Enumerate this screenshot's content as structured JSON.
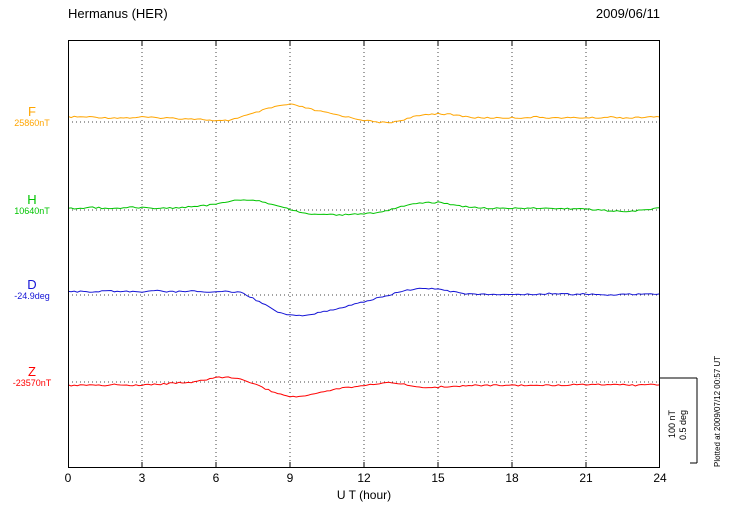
{
  "header": {
    "station": "Hermanus (HER)",
    "date": "2009/06/11"
  },
  "footer": {
    "plotted_at": "Plotted at 2009/07/12 00:57 UT"
  },
  "chart_data": {
    "type": "line",
    "title": "Hermanus (HER) magnetogram 2009/06/11",
    "xlabel": "U T (hour)",
    "x_range": [
      0,
      24
    ],
    "x_ticks": [
      0,
      3,
      6,
      9,
      12,
      15,
      18,
      21,
      24
    ],
    "x_hours_step": 0.5,
    "grid": "dotted vertical gridlines every 3 hours, dotted horizontal baseline per trace",
    "values_are": "offset from baseline value, sampled every 0.5 hour",
    "scale_bar": {
      "nT": 100,
      "deg": 0.5,
      "label_nT": "100 nT",
      "label_deg": "0.5 deg"
    },
    "series": [
      {
        "name": "F",
        "baseline_label": "25860nT",
        "baseline_value": 25860,
        "unit": "nT",
        "color": "#ffa500",
        "values": [
          6,
          6,
          6,
          5,
          5,
          5,
          6,
          5,
          5,
          4,
          4,
          3,
          1,
          2,
          6,
          10,
          15,
          19,
          21,
          18,
          14,
          11,
          8,
          5,
          2,
          0,
          -1,
          2,
          6,
          9,
          10,
          9,
          7,
          5,
          5,
          5,
          5,
          5,
          6,
          5,
          5,
          5,
          5,
          5,
          6,
          5,
          5,
          6,
          6
        ]
      },
      {
        "name": "H",
        "baseline_label": "10640nT",
        "baseline_value": 10640,
        "unit": "nT",
        "color": "#00c400",
        "values": [
          2,
          2,
          3,
          2,
          2,
          3,
          3,
          2,
          2,
          3,
          4,
          5,
          7,
          10,
          12,
          12,
          9,
          5,
          1,
          -3,
          -5,
          -5,
          -6,
          -5,
          -5,
          -3,
          0,
          4,
          8,
          9,
          9,
          7,
          4,
          3,
          2,
          2,
          2,
          2,
          2,
          2,
          2,
          1,
          1,
          0,
          -1,
          -2,
          -1,
          1,
          2
        ]
      },
      {
        "name": "D",
        "baseline_label": "-24.9deg",
        "baseline_value": -24.9,
        "unit": "deg",
        "color": "#1515d6",
        "values": [
          0.02,
          0.02,
          0.02,
          0.025,
          0.02,
          0.02,
          0.02,
          0.025,
          0.02,
          0.02,
          0.025,
          0.02,
          0.02,
          0.02,
          0.015,
          -0.02,
          -0.06,
          -0.1,
          -0.12,
          -0.125,
          -0.11,
          -0.095,
          -0.08,
          -0.06,
          -0.04,
          -0.02,
          0,
          0.02,
          0.035,
          0.04,
          0.035,
          0.02,
          0.01,
          0.005,
          0.005,
          0.005,
          0.005,
          0.005,
          0.005,
          0.01,
          0.005,
          0.005,
          0.005,
          0.005,
          0,
          0.005,
          0.005,
          0.005,
          0.005
        ]
      },
      {
        "name": "Z",
        "baseline_label": "-23570nT",
        "baseline_value": -23570,
        "unit": "nT",
        "color": "#ff0000",
        "values": [
          -4,
          -4,
          -4,
          -4,
          -3,
          -4,
          -4,
          -3,
          -2,
          -1,
          0,
          2,
          5,
          6,
          3,
          -2,
          -8,
          -14,
          -18,
          -17,
          -14,
          -11,
          -8,
          -6,
          -4,
          -2,
          0,
          -2,
          -5,
          -7,
          -6,
          -5,
          -5,
          -4,
          -4,
          -4,
          -4,
          -4,
          -4,
          -4,
          -4,
          -3,
          -3,
          -3,
          -3,
          -3,
          -4,
          -3,
          -3
        ]
      }
    ]
  }
}
